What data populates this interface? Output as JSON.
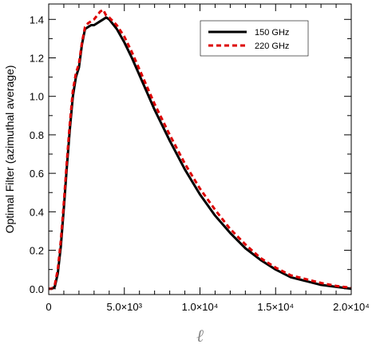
{
  "chart_data": {
    "type": "line",
    "xlabel": "ℓ",
    "ylabel": "Optimal Filter (azimuthal average)",
    "xlim": [
      0,
      20000
    ],
    "ylim": [
      -0.03,
      1.48
    ],
    "x_ticks": [
      0,
      5000,
      10000,
      15000,
      20000
    ],
    "x_tick_labels": [
      "0",
      "5.0×10³",
      "1.0×10⁴",
      "1.5×10⁴",
      "2.0×10⁴"
    ],
    "y_ticks": [
      0.0,
      0.2,
      0.4,
      0.6,
      0.8,
      1.0,
      1.2,
      1.4
    ],
    "y_tick_labels": [
      "0.0",
      "0.2",
      "0.4",
      "0.6",
      "0.8",
      "1.0",
      "1.2",
      "1.4"
    ],
    "grid": false,
    "legend_position": "top-right",
    "series": [
      {
        "name": "150 GHz",
        "color": "#000000",
        "style": "solid",
        "x": [
          0,
          200,
          400,
          600,
          800,
          1000,
          1200,
          1400,
          1600,
          1800,
          2000,
          2200,
          2400,
          2600,
          2800,
          3000,
          3200,
          3400,
          3600,
          3800,
          4000,
          4500,
          5000,
          5500,
          6000,
          7000,
          8000,
          9000,
          10000,
          11000,
          12000,
          13000,
          14000,
          15000,
          16000,
          17000,
          18000,
          19000,
          20000
        ],
        "y": [
          0.0,
          0.0,
          0.01,
          0.08,
          0.22,
          0.42,
          0.63,
          0.83,
          1.0,
          1.1,
          1.15,
          1.27,
          1.35,
          1.36,
          1.37,
          1.37,
          1.38,
          1.39,
          1.4,
          1.41,
          1.4,
          1.35,
          1.28,
          1.2,
          1.11,
          0.93,
          0.77,
          0.62,
          0.49,
          0.38,
          0.29,
          0.21,
          0.15,
          0.1,
          0.06,
          0.04,
          0.02,
          0.01,
          0.0
        ]
      },
      {
        "name": "220 GHz",
        "color": "#dd0000",
        "style": "dashed",
        "x": [
          0,
          200,
          400,
          600,
          800,
          1000,
          1200,
          1400,
          1600,
          1800,
          2000,
          2200,
          2400,
          2600,
          2800,
          3000,
          3200,
          3400,
          3600,
          3800,
          4000,
          4500,
          5000,
          5500,
          6000,
          7000,
          8000,
          9000,
          10000,
          11000,
          12000,
          13000,
          14000,
          15000,
          16000,
          17000,
          18000,
          19000,
          20000
        ],
        "y": [
          0.0,
          0.0,
          0.02,
          0.1,
          0.25,
          0.45,
          0.66,
          0.86,
          1.03,
          1.12,
          1.17,
          1.28,
          1.36,
          1.38,
          1.39,
          1.4,
          1.42,
          1.44,
          1.45,
          1.42,
          1.41,
          1.37,
          1.31,
          1.23,
          1.14,
          0.96,
          0.8,
          0.65,
          0.52,
          0.41,
          0.31,
          0.23,
          0.16,
          0.11,
          0.07,
          0.05,
          0.03,
          0.015,
          0.005
        ]
      }
    ]
  }
}
